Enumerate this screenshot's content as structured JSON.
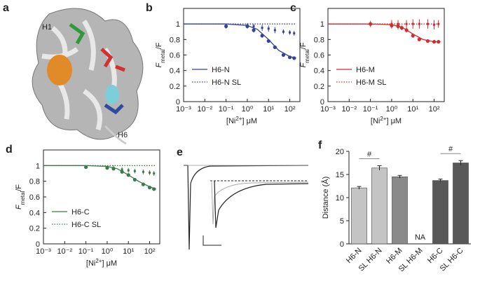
{
  "figure": {
    "panel_a": {
      "label": "a",
      "annotations": [
        "H1",
        "H6"
      ]
    },
    "panel_e": {
      "label": "e"
    }
  },
  "chart_data": [
    {
      "type": "line",
      "panel": "b",
      "x_scale": "log",
      "legend": "lower left",
      "grid": false,
      "xlabel": [
        "[Ni",
        "2+",
        "] μM"
      ],
      "ylabel": [
        "F",
        "metal",
        "/F"
      ],
      "xlim": [
        0.001,
        300
      ],
      "ylim": [
        0,
        1.2
      ],
      "xticks": [
        {
          "value": 0.001,
          "label": "10⁻³"
        },
        {
          "value": 0.01,
          "label": "10⁻²"
        },
        {
          "value": 0.1,
          "label": "10⁻¹"
        },
        {
          "value": 1,
          "label": "10⁰"
        },
        {
          "value": 10,
          "label": "10¹"
        },
        {
          "value": 100,
          "label": "10²"
        }
      ],
      "yticks": [
        0,
        0.2,
        0.4,
        0.6,
        0.8,
        1
      ],
      "series": [
        {
          "name": "H6-N",
          "color": "#34429a",
          "line_style": "solid",
          "x": [
            0.1,
            1,
            2,
            5,
            10,
            20,
            50,
            100,
            160
          ],
          "values": [
            0.97,
            0.97,
            0.92,
            0.85,
            0.78,
            0.7,
            0.6,
            0.57,
            0.56
          ],
          "errors": [
            0.03,
            0.03,
            0.03,
            0.03,
            0.02,
            0.02,
            0.02,
            0.02,
            0.02
          ],
          "fit": {
            "x": [
              0.001,
              0.1,
              1,
              3,
              10,
              30,
              100,
              200
            ],
            "values": [
              1,
              1,
              0.98,
              0.93,
              0.8,
              0.66,
              0.58,
              0.56
            ]
          }
        },
        {
          "name": "H6-N SL",
          "color": "#34429a",
          "line_style": "dotted",
          "x": [
            1,
            2,
            5,
            10,
            20,
            50,
            100,
            160
          ],
          "values": [
            0.98,
            0.97,
            0.95,
            0.94,
            0.92,
            0.9,
            0.89,
            0.88
          ],
          "errors": [
            0.03,
            0.03,
            0.04,
            0.04,
            0.04,
            0.03,
            0.03,
            0.03
          ],
          "fit": {
            "x": [
              0.001,
              200
            ],
            "values": [
              1,
              1
            ]
          }
        }
      ]
    },
    {
      "type": "line",
      "panel": "c",
      "x_scale": "log",
      "legend": "lower left",
      "grid": false,
      "xlabel": [
        "[Ni",
        "2+",
        "] μM"
      ],
      "ylabel": [
        "F",
        "metal",
        "/F"
      ],
      "xlim": [
        0.001,
        300
      ],
      "ylim": [
        0,
        1.2
      ],
      "xticks": [
        {
          "value": 0.001,
          "label": "10⁻³"
        },
        {
          "value": 0.01,
          "label": "10⁻²"
        },
        {
          "value": 0.1,
          "label": "10⁻¹"
        },
        {
          "value": 1,
          "label": "10⁰"
        },
        {
          "value": 10,
          "label": "10¹"
        },
        {
          "value": 100,
          "label": "10²"
        }
      ],
      "yticks": [
        0,
        0.2,
        0.4,
        0.6,
        0.8,
        1
      ],
      "series": [
        {
          "name": "H6-M",
          "color": "#d42a2a",
          "line_style": "solid",
          "x": [
            0.1,
            1,
            2,
            3,
            5,
            10,
            20,
            50,
            100,
            160
          ],
          "values": [
            1,
            0.98,
            0.97,
            0.95,
            0.92,
            0.85,
            0.8,
            0.78,
            0.77,
            0.77
          ],
          "errors": [
            0.04,
            0.04,
            0.04,
            0.03,
            0.03,
            0.03,
            0.02,
            0.02,
            0.02,
            0.02
          ],
          "fit": {
            "x": [
              0.001,
              0.1,
              1,
              3,
              10,
              30,
              100,
              200
            ],
            "values": [
              1,
              1,
              0.99,
              0.96,
              0.87,
              0.8,
              0.77,
              0.77
            ]
          }
        },
        {
          "name": "H6-M SL",
          "color": "#d42a2a",
          "line_style": "dotted",
          "x": [
            1,
            2,
            5,
            10,
            20,
            50,
            100,
            160
          ],
          "values": [
            1,
            1,
            1,
            1,
            1,
            1,
            0.99,
            1
          ],
          "errors": [
            0.05,
            0.05,
            0.05,
            0.06,
            0.06,
            0.06,
            0.06,
            0.05
          ],
          "fit": {
            "x": [
              0.001,
              200
            ],
            "values": [
              1,
              1
            ]
          }
        }
      ]
    },
    {
      "type": "line",
      "panel": "d",
      "x_scale": "log",
      "legend": "lower left",
      "grid": false,
      "xlabel": [
        "[Ni",
        "2+",
        "] μM"
      ],
      "ylabel": [
        "F",
        "metal",
        "/F"
      ],
      "xlim": [
        0.001,
        300
      ],
      "ylim": [
        0,
        1.2
      ],
      "xticks": [
        {
          "value": 0.001,
          "label": "10⁻³"
        },
        {
          "value": 0.01,
          "label": "10⁻²"
        },
        {
          "value": 0.1,
          "label": "10⁻¹"
        },
        {
          "value": 1,
          "label": "10⁰"
        },
        {
          "value": 10,
          "label": "10¹"
        },
        {
          "value": 100,
          "label": "10²"
        }
      ],
      "yticks": [
        0,
        0.2,
        0.4,
        0.6,
        0.8,
        1
      ],
      "series": [
        {
          "name": "H6-C",
          "color": "#3c7a4c",
          "line_style": "solid",
          "x": [
            0.1,
            1,
            2,
            5,
            10,
            20,
            50,
            100,
            160
          ],
          "values": [
            0.98,
            0.97,
            0.96,
            0.92,
            0.88,
            0.82,
            0.76,
            0.72,
            0.7
          ],
          "errors": [
            0.02,
            0.02,
            0.02,
            0.02,
            0.02,
            0.02,
            0.02,
            0.02,
            0.02
          ],
          "fit": {
            "x": [
              0.001,
              0.1,
              1,
              3,
              10,
              30,
              100,
              200
            ],
            "values": [
              1,
              1,
              0.99,
              0.96,
              0.88,
              0.8,
              0.73,
              0.7
            ]
          }
        },
        {
          "name": "H6-C SL",
          "color": "#3c7a4c",
          "line_style": "dotted",
          "x": [
            1,
            2,
            5,
            10,
            20,
            50,
            100,
            160
          ],
          "values": [
            0.98,
            0.97,
            0.95,
            0.94,
            0.93,
            0.92,
            0.91,
            0.9
          ],
          "errors": [
            0.02,
            0.03,
            0.03,
            0.03,
            0.03,
            0.03,
            0.03,
            0.03
          ],
          "fit": {
            "x": [
              0.001,
              200
            ],
            "values": [
              1,
              1
            ]
          }
        }
      ]
    },
    {
      "type": "bar",
      "panel": "f",
      "ylabel": "Distance (Å)",
      "categories": [
        "H6-N",
        "SL H6-N",
        "H6-M",
        "SL H6-M",
        "H6-C",
        "SL H6-C"
      ],
      "values": [
        12.1,
        16.4,
        14.5,
        null,
        13.7,
        17.5
      ],
      "errors": [
        0.3,
        0.5,
        0.3,
        null,
        0.3,
        0.5
      ],
      "colors": [
        "#c4c4c4",
        "#c4c4c4",
        "#8a8a8a",
        null,
        "#585858",
        "#585858"
      ],
      "missing_label": "NA",
      "significance": [
        {
          "label": "#",
          "categories": [
            "H6-N",
            "SL H6-N"
          ]
        },
        {
          "label": "#",
          "categories": [
            "H6-C",
            "SL H6-C"
          ]
        }
      ],
      "ylim": [
        0,
        20
      ],
      "yticks": [
        0,
        5,
        10,
        15,
        20
      ]
    }
  ]
}
